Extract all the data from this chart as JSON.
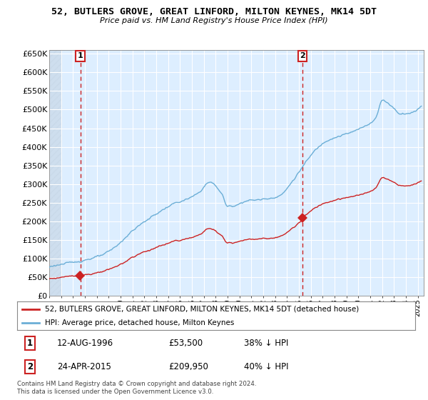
{
  "title": "52, BUTLERS GROVE, GREAT LINFORD, MILTON KEYNES, MK14 5DT",
  "subtitle": "Price paid vs. HM Land Registry's House Price Index (HPI)",
  "legend_line1": "52, BUTLERS GROVE, GREAT LINFORD, MILTON KEYNES, MK14 5DT (detached house)",
  "legend_line2": "HPI: Average price, detached house, Milton Keynes",
  "footer": "Contains HM Land Registry data © Crown copyright and database right 2024.\nThis data is licensed under the Open Government Licence v3.0.",
  "annotation1_label": "1",
  "annotation1_date": "12-AUG-1996",
  "annotation1_price": "£53,500",
  "annotation1_hpi": "38% ↓ HPI",
  "annotation2_label": "2",
  "annotation2_date": "24-APR-2015",
  "annotation2_price": "£209,950",
  "annotation2_hpi": "40% ↓ HPI",
  "hpi_color": "#6baed6",
  "price_color": "#cc2222",
  "annotation_color": "#cc2222",
  "background_color": "#ffffff",
  "plot_bg_color": "#ddeeff",
  "grid_color": "#ffffff",
  "ylim": [
    0,
    660000
  ],
  "yticks": [
    0,
    50000,
    100000,
    150000,
    200000,
    250000,
    300000,
    350000,
    400000,
    450000,
    500000,
    550000,
    600000,
    650000
  ],
  "sale1_year": 1996.614,
  "sale1_price": 53500,
  "sale2_year": 2015.31,
  "sale2_price": 209950
}
